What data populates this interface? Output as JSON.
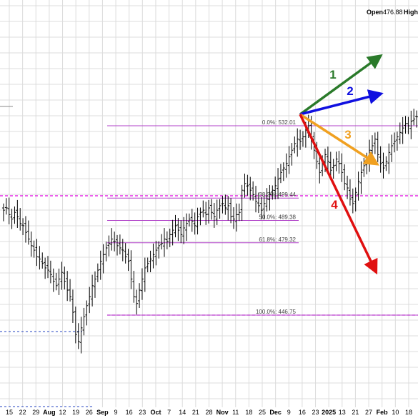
{
  "header": {
    "open_label": "Open",
    "open_value": "476.88",
    "high_label": "High"
  },
  "colors": {
    "bars": "#000000",
    "grid": "#dcdcdc",
    "fib_lines": "#b040c8",
    "magenta_dashed": "#e000e0",
    "blue_dashed": "#2040c0",
    "arrow_1": "#2a7a2a",
    "arrow_2": "#1010e0",
    "arrow_3": "#f0a020",
    "arrow_4": "#e01010"
  },
  "chart_data": {
    "type": "ohlc-bar",
    "x_ticks": [
      {
        "label": "15",
        "bold": false
      },
      {
        "label": "22",
        "bold": false
      },
      {
        "label": "29",
        "bold": false
      },
      {
        "label": "Aug",
        "bold": true
      },
      {
        "label": "12",
        "bold": false
      },
      {
        "label": "19",
        "bold": false
      },
      {
        "label": "26",
        "bold": false
      },
      {
        "label": "Sep",
        "bold": true
      },
      {
        "label": "9",
        "bold": false
      },
      {
        "label": "16",
        "bold": false
      },
      {
        "label": "23",
        "bold": false
      },
      {
        "label": "Oct",
        "bold": true
      },
      {
        "label": "7",
        "bold": false
      },
      {
        "label": "14",
        "bold": false
      },
      {
        "label": "21",
        "bold": false
      },
      {
        "label": "28",
        "bold": false
      },
      {
        "label": "Nov",
        "bold": true
      },
      {
        "label": "11",
        "bold": false
      },
      {
        "label": "18",
        "bold": false
      },
      {
        "label": "25",
        "bold": false
      },
      {
        "label": "Dec",
        "bold": true
      },
      {
        "label": "9",
        "bold": false
      },
      {
        "label": "16",
        "bold": false
      },
      {
        "label": "23",
        "bold": false
      },
      {
        "label": "2025",
        "bold": true
      },
      {
        "label": "13",
        "bold": false
      },
      {
        "label": "21",
        "bold": false
      },
      {
        "label": "27",
        "bold": false
      },
      {
        "label": "Feb",
        "bold": true
      },
      {
        "label": "10",
        "bold": false
      },
      {
        "label": "18",
        "bold": false
      }
    ],
    "ylim": [
      410,
      565
    ],
    "series_close": [
      494,
      495,
      492,
      490,
      493,
      491,
      488,
      487,
      484,
      481,
      478,
      476,
      473,
      472,
      470,
      468,
      467,
      465,
      462,
      460,
      463,
      466,
      462,
      458,
      455,
      448,
      438,
      435,
      441,
      446,
      451,
      455,
      460,
      463,
      467,
      471,
      474,
      477,
      479,
      481,
      480,
      478,
      477,
      476,
      473,
      471,
      463,
      455,
      452,
      458,
      463,
      468,
      470,
      472,
      474,
      476,
      478,
      479,
      481,
      480,
      483,
      485,
      487,
      485,
      483,
      486,
      488,
      490,
      489,
      487,
      491,
      493,
      494,
      492,
      495,
      493,
      491,
      494,
      496,
      497,
      495,
      496,
      491,
      490,
      492,
      493,
      503,
      506,
      505,
      503,
      501,
      498,
      496,
      494,
      497,
      499,
      501,
      503,
      505,
      508,
      511,
      513,
      515,
      518,
      521,
      524,
      526,
      525,
      527,
      530,
      532,
      526,
      521,
      516,
      511,
      515,
      519,
      516,
      512,
      514,
      517,
      515,
      511,
      506,
      504,
      499,
      497,
      502,
      507,
      511,
      514,
      517,
      521,
      523,
      526,
      519,
      515,
      513,
      516,
      520,
      523,
      525,
      527,
      529,
      531,
      533,
      532,
      534,
      535,
      536
    ],
    "fib_retracement": {
      "high": 532.01,
      "low": 446.75,
      "levels": [
        {
          "label": "0.0%: 532.01",
          "value": 532.01
        },
        {
          "label": "38.2%: 499.44",
          "value": 499.44
        },
        {
          "label": "50.0%: 489.38",
          "value": 489.38
        },
        {
          "label": "61.8%: 479.32",
          "value": 479.32
        },
        {
          "label": "100.0%: 446.75",
          "value": 446.75
        }
      ]
    },
    "arrows": [
      {
        "label": "1"
      },
      {
        "label": "2"
      },
      {
        "label": "3"
      },
      {
        "label": "4"
      }
    ]
  }
}
